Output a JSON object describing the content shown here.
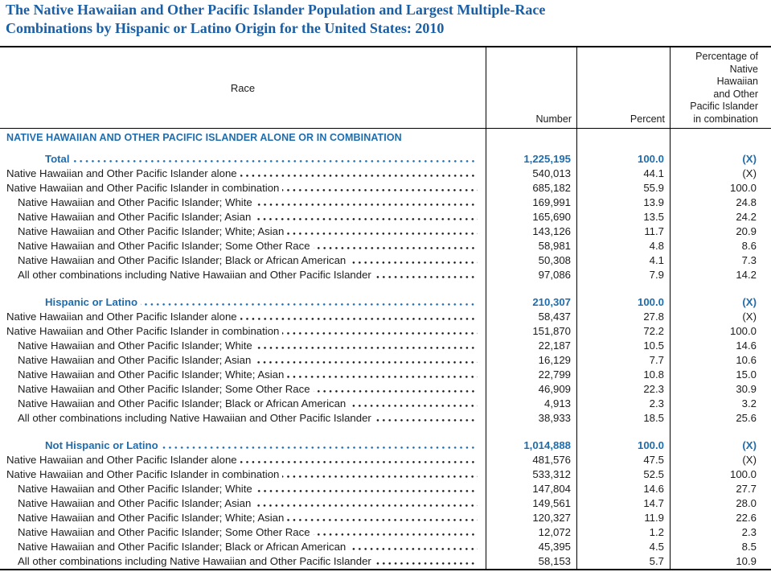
{
  "title": "The Native Hawaiian and Other Pacific Islander Population and Largest Multiple-Race\nCombinations by Hispanic or Latino Origin for the United States: 2010",
  "colors": {
    "title_blue": "#1a5fa5",
    "accent_blue": "#1f6dad",
    "text": "#1c1c1c",
    "border": "#000000"
  },
  "table": {
    "header": {
      "race": "Race",
      "number": "Number",
      "percent": "Percent",
      "pct_combination": "Percentage of\nNative\nHawaiian\nand Other\nPacific Islander\nin combination"
    },
    "section_header": "NATIVE HAWAIIAN AND OTHER PACIFIC ISLANDER ALONE OR IN COMBINATION",
    "groups": [
      {
        "rows": [
          {
            "label": "Total",
            "indent": 2,
            "em": true,
            "number": "1,225,195",
            "percent": "100.0",
            "pct_combination": "(X)"
          },
          {
            "label": "Native Hawaiian and Other Pacific Islander alone",
            "indent": 0,
            "em": false,
            "number": "540,013",
            "percent": "44.1",
            "pct_combination": "(X)"
          },
          {
            "label": "Native Hawaiian and Other Pacific Islander in combination",
            "indent": 0,
            "em": false,
            "number": "685,182",
            "percent": "55.9",
            "pct_combination": "100.0"
          },
          {
            "label": "Native Hawaiian and Other Pacific Islander; White",
            "indent": 1,
            "em": false,
            "number": "169,991",
            "percent": "13.9",
            "pct_combination": "24.8"
          },
          {
            "label": "Native Hawaiian and Other Pacific Islander; Asian",
            "indent": 1,
            "em": false,
            "number": "165,690",
            "percent": "13.5",
            "pct_combination": "24.2"
          },
          {
            "label": "Native Hawaiian and Other Pacific Islander; White; Asian",
            "indent": 1,
            "em": false,
            "number": "143,126",
            "percent": "11.7",
            "pct_combination": "20.9"
          },
          {
            "label": "Native Hawaiian and Other Pacific Islander; Some Other Race",
            "indent": 1,
            "em": false,
            "number": "58,981",
            "percent": "4.8",
            "pct_combination": "8.6"
          },
          {
            "label": "Native Hawaiian and Other Pacific Islander; Black or African American",
            "indent": 1,
            "em": false,
            "number": "50,308",
            "percent": "4.1",
            "pct_combination": "7.3"
          },
          {
            "label": "All other combinations including Native Hawaiian and Other Pacific Islander",
            "indent": 1,
            "em": false,
            "number": "97,086",
            "percent": "7.9",
            "pct_combination": "14.2"
          }
        ]
      },
      {
        "rows": [
          {
            "label": "Hispanic or Latino",
            "indent": 2,
            "em": true,
            "number": "210,307",
            "percent": "100.0",
            "pct_combination": "(X)"
          },
          {
            "label": "Native Hawaiian and Other Pacific Islander alone",
            "indent": 0,
            "em": false,
            "number": "58,437",
            "percent": "27.8",
            "pct_combination": "(X)"
          },
          {
            "label": "Native Hawaiian and Other Pacific Islander in combination",
            "indent": 0,
            "em": false,
            "number": "151,870",
            "percent": "72.2",
            "pct_combination": "100.0"
          },
          {
            "label": "Native Hawaiian and Other Pacific Islander; White",
            "indent": 1,
            "em": false,
            "number": "22,187",
            "percent": "10.5",
            "pct_combination": "14.6"
          },
          {
            "label": "Native Hawaiian and Other Pacific Islander; Asian",
            "indent": 1,
            "em": false,
            "number": "16,129",
            "percent": "7.7",
            "pct_combination": "10.6"
          },
          {
            "label": "Native Hawaiian and Other Pacific Islander; White; Asian",
            "indent": 1,
            "em": false,
            "number": "22,799",
            "percent": "10.8",
            "pct_combination": "15.0"
          },
          {
            "label": "Native Hawaiian and Other Pacific Islander; Some Other Race",
            "indent": 1,
            "em": false,
            "number": "46,909",
            "percent": "22.3",
            "pct_combination": "30.9"
          },
          {
            "label": "Native Hawaiian and Other Pacific Islander; Black or African American",
            "indent": 1,
            "em": false,
            "number": "4,913",
            "percent": "2.3",
            "pct_combination": "3.2"
          },
          {
            "label": "All other combinations including Native Hawaiian and Other Pacific Islander",
            "indent": 1,
            "em": false,
            "number": "38,933",
            "percent": "18.5",
            "pct_combination": "25.6"
          }
        ]
      },
      {
        "rows": [
          {
            "label": "Not Hispanic or Latino",
            "indent": 2,
            "em": true,
            "number": "1,014,888",
            "percent": "100.0",
            "pct_combination": "(X)"
          },
          {
            "label": "Native Hawaiian and Other Pacific Islander alone",
            "indent": 0,
            "em": false,
            "number": "481,576",
            "percent": "47.5",
            "pct_combination": "(X)"
          },
          {
            "label": "Native Hawaiian and Other Pacific Islander in combination",
            "indent": 0,
            "em": false,
            "number": "533,312",
            "percent": "52.5",
            "pct_combination": "100.0"
          },
          {
            "label": "Native Hawaiian and Other Pacific Islander; White",
            "indent": 1,
            "em": false,
            "number": "147,804",
            "percent": "14.6",
            "pct_combination": "27.7"
          },
          {
            "label": "Native Hawaiian and Other Pacific Islander; Asian",
            "indent": 1,
            "em": false,
            "number": "149,561",
            "percent": "14.7",
            "pct_combination": "28.0"
          },
          {
            "label": "Native Hawaiian and Other Pacific Islander; White; Asian",
            "indent": 1,
            "em": false,
            "number": "120,327",
            "percent": "11.9",
            "pct_combination": "22.6"
          },
          {
            "label": "Native Hawaiian and Other Pacific Islander; Some Other Race",
            "indent": 1,
            "em": false,
            "number": "12,072",
            "percent": "1.2",
            "pct_combination": "2.3"
          },
          {
            "label": "Native Hawaiian and Other Pacific Islander; Black or African American",
            "indent": 1,
            "em": false,
            "number": "45,395",
            "percent": "4.5",
            "pct_combination": "8.5"
          },
          {
            "label": "All other combinations including Native Hawaiian and Other Pacific Islander",
            "indent": 1,
            "em": false,
            "number": "58,153",
            "percent": "5.7",
            "pct_combination": "10.9"
          }
        ]
      }
    ]
  }
}
